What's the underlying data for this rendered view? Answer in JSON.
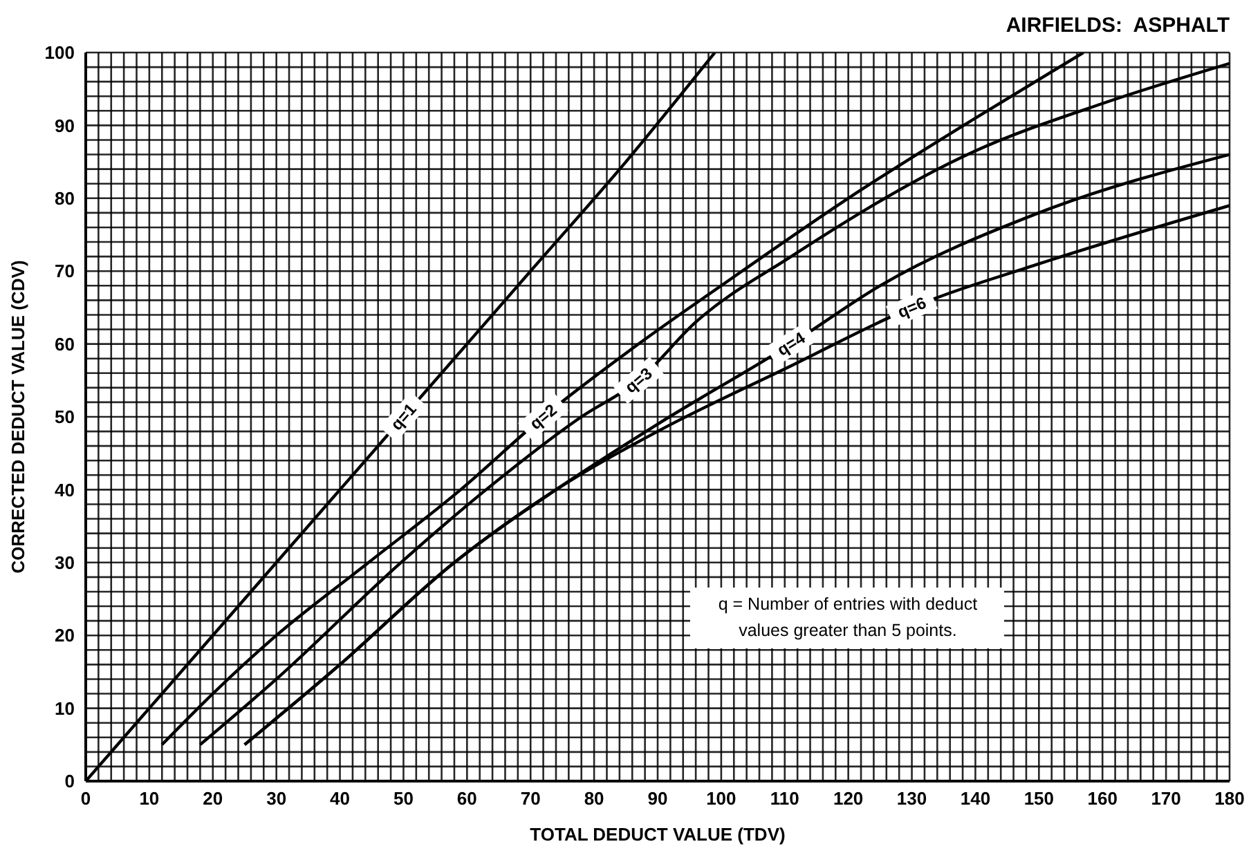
{
  "chart_data": {
    "type": "line",
    "title": "AIRFIELDS:  ASPHALT",
    "xlabel": "TOTAL DEDUCT VALUE (TDV)",
    "ylabel": "CORRECTED DEDUCT VALUE (CDV)",
    "series": [
      {
        "name": "q=1",
        "color": "#000000",
        "x": [
          0,
          10,
          30,
          50,
          70,
          85,
          99
        ],
        "values": [
          0,
          10,
          30,
          50,
          70,
          85,
          100
        ]
      },
      {
        "name": "q=2",
        "color": "#000000",
        "x": [
          12,
          20,
          30,
          44.5,
          59,
          72,
          87,
          100,
          120,
          140,
          157
        ],
        "values": [
          5,
          12,
          20,
          30,
          40,
          50,
          60,
          68,
          80,
          91,
          100
        ]
      },
      {
        "name": "q=3",
        "color": "#000000",
        "x": [
          18,
          30,
          49.6,
          63,
          78,
          87,
          96,
          111,
          140,
          160,
          180
        ],
        "values": [
          5,
          14,
          30,
          40,
          50,
          55,
          63,
          72,
          86.5,
          93,
          98.5
        ]
      },
      {
        "name": "q=4",
        "color": "#000000",
        "x": [
          25,
          40,
          58,
          74,
          90,
          111,
          125,
          150,
          180
        ],
        "values": [
          5,
          16,
          30,
          40,
          49,
          60,
          68,
          78,
          86
        ]
      },
      {
        "name": "q=6",
        "color": "#000000",
        "x": [
          25,
          40,
          58,
          74,
          90,
          111,
          130,
          150,
          180
        ],
        "values": [
          5,
          16,
          30,
          40,
          48,
          57,
          65,
          71,
          79
        ]
      }
    ],
    "annotations": [
      "q = Number of entries with deduct values greater than 5 points."
    ],
    "xlim": [
      0,
      180
    ],
    "ylim": [
      0,
      100
    ],
    "xticks": [
      0,
      {
        "value": 2,
        "label": null
      },
      {
        "value": 4,
        "label": null
      },
      {
        "value": 6,
        "label": null
      },
      {
        "value": 8,
        "label": null
      },
      10,
      {
        "value": 12,
        "label": null
      },
      {
        "value": 14,
        "label": null
      },
      {
        "value": 16,
        "label": null
      },
      {
        "value": 18,
        "label": null
      },
      20,
      {
        "value": 22,
        "label": null
      },
      {
        "value": 24,
        "label": null
      },
      {
        "value": 26,
        "label": null
      },
      {
        "value": 28,
        "label": null
      },
      30,
      {
        "value": 32,
        "label": null
      },
      {
        "value": 34,
        "label": null
      },
      {
        "value": 36,
        "label": null
      },
      {
        "value": 38,
        "label": null
      },
      40,
      {
        "value": 42,
        "label": null
      },
      {
        "value": 44,
        "label": null
      },
      {
        "value": 46,
        "label": null
      },
      {
        "value": 48,
        "label": null
      },
      50,
      {
        "value": 52,
        "label": null
      },
      {
        "value": 54,
        "label": null
      },
      {
        "value": 56,
        "label": null
      },
      {
        "value": 58,
        "label": null
      },
      60,
      {
        "value": 62,
        "label": null
      },
      {
        "value": 64,
        "label": null
      },
      {
        "value": 66,
        "label": null
      },
      {
        "value": 68,
        "label": null
      },
      70,
      {
        "value": 72,
        "label": null
      },
      {
        "value": 74,
        "label": null
      },
      {
        "value": 76,
        "label": null
      },
      {
        "value": 78,
        "label": null
      },
      80,
      {
        "value": 82,
        "label": null
      },
      {
        "value": 84,
        "label": null
      },
      {
        "value": 86,
        "label": null
      },
      {
        "value": 88,
        "label": null
      },
      90,
      {
        "value": 92,
        "label": null
      },
      {
        "value": 94,
        "label": null
      },
      {
        "value": 96,
        "label": null
      },
      {
        "value": 98,
        "label": null
      },
      100,
      {
        "value": 102,
        "label": null
      },
      {
        "value": 104,
        "label": null
      },
      {
        "value": 106,
        "label": null
      },
      {
        "value": 108,
        "label": null
      },
      110,
      {
        "value": 112,
        "label": null
      },
      {
        "value": 114,
        "label": null
      },
      {
        "value": 116,
        "label": null
      },
      {
        "value": 118,
        "label": null
      },
      120,
      {
        "value": 122,
        "label": null
      },
      {
        "value": 124,
        "label": null
      },
      {
        "value": 126,
        "label": null
      },
      {
        "value": 128,
        "label": null
      },
      130,
      {
        "value": 132,
        "label": null
      },
      {
        "value": 134,
        "label": null
      },
      {
        "value": 136,
        "label": null
      },
      {
        "value": 138,
        "label": null
      },
      140,
      {
        "value": 142,
        "label": null
      },
      {
        "value": 144,
        "label": null
      },
      {
        "value": 146,
        "label": null
      },
      {
        "value": 148,
        "label": null
      },
      150,
      {
        "value": 152,
        "label": null
      },
      {
        "value": 154,
        "label": null
      },
      {
        "value": 156,
        "label": null
      },
      {
        "value": 158,
        "label": null
      },
      160,
      {
        "value": 162,
        "label": null
      },
      {
        "value": 164,
        "label": null
      },
      {
        "value": 166,
        "label": null
      },
      {
        "value": 168,
        "label": null
      },
      170,
      {
        "value": 172,
        "label": null
      },
      {
        "value": 174,
        "label": null
      },
      {
        "value": 176,
        "label": null
      },
      {
        "value": 178,
        "label": null
      },
      180
    ],
    "yticks": [
      0,
      {
        "value": 2,
        "label": null
      },
      {
        "value": 4,
        "label": null
      },
      {
        "value": 6,
        "label": null
      },
      {
        "value": 8,
        "label": null
      },
      10,
      {
        "value": 12,
        "label": null
      },
      {
        "value": 14,
        "label": null
      },
      {
        "value": 16,
        "label": null
      },
      {
        "value": 18,
        "label": null
      },
      20,
      {
        "value": 22,
        "label": null
      },
      {
        "value": 24,
        "label": null
      },
      {
        "value": 26,
        "label": null
      },
      {
        "value": 28,
        "label": null
      },
      30,
      {
        "value": 32,
        "label": null
      },
      {
        "value": 34,
        "label": null
      },
      {
        "value": 36,
        "label": null
      },
      {
        "value": 38,
        "label": null
      },
      40,
      {
        "value": 42,
        "label": null
      },
      {
        "value": 44,
        "label": null
      },
      {
        "value": 46,
        "label": null
      },
      {
        "value": 48,
        "label": null
      },
      50,
      {
        "value": 52,
        "label": null
      },
      {
        "value": 54,
        "label": null
      },
      {
        "value": 56,
        "label": null
      },
      {
        "value": 58,
        "label": null
      },
      60,
      {
        "value": 62,
        "label": null
      },
      {
        "value": 64,
        "label": null
      },
      {
        "value": 66,
        "label": null
      },
      {
        "value": 68,
        "label": null
      },
      70,
      {
        "value": 72,
        "label": null
      },
      {
        "value": 74,
        "label": null
      },
      {
        "value": 76,
        "label": null
      },
      {
        "value": 78,
        "label": null
      },
      80,
      {
        "value": 82,
        "label": null
      },
      {
        "value": 84,
        "label": null
      },
      {
        "value": 86,
        "label": null
      },
      {
        "value": 88,
        "label": null
      },
      90,
      {
        "value": 92,
        "label": null
      },
      {
        "value": 94,
        "label": null
      },
      {
        "value": 96,
        "label": null
      },
      {
        "value": 98,
        "label": null
      },
      100
    ],
    "grid": true,
    "legend": false,
    "marker": "none",
    "line_style": "solid"
  }
}
